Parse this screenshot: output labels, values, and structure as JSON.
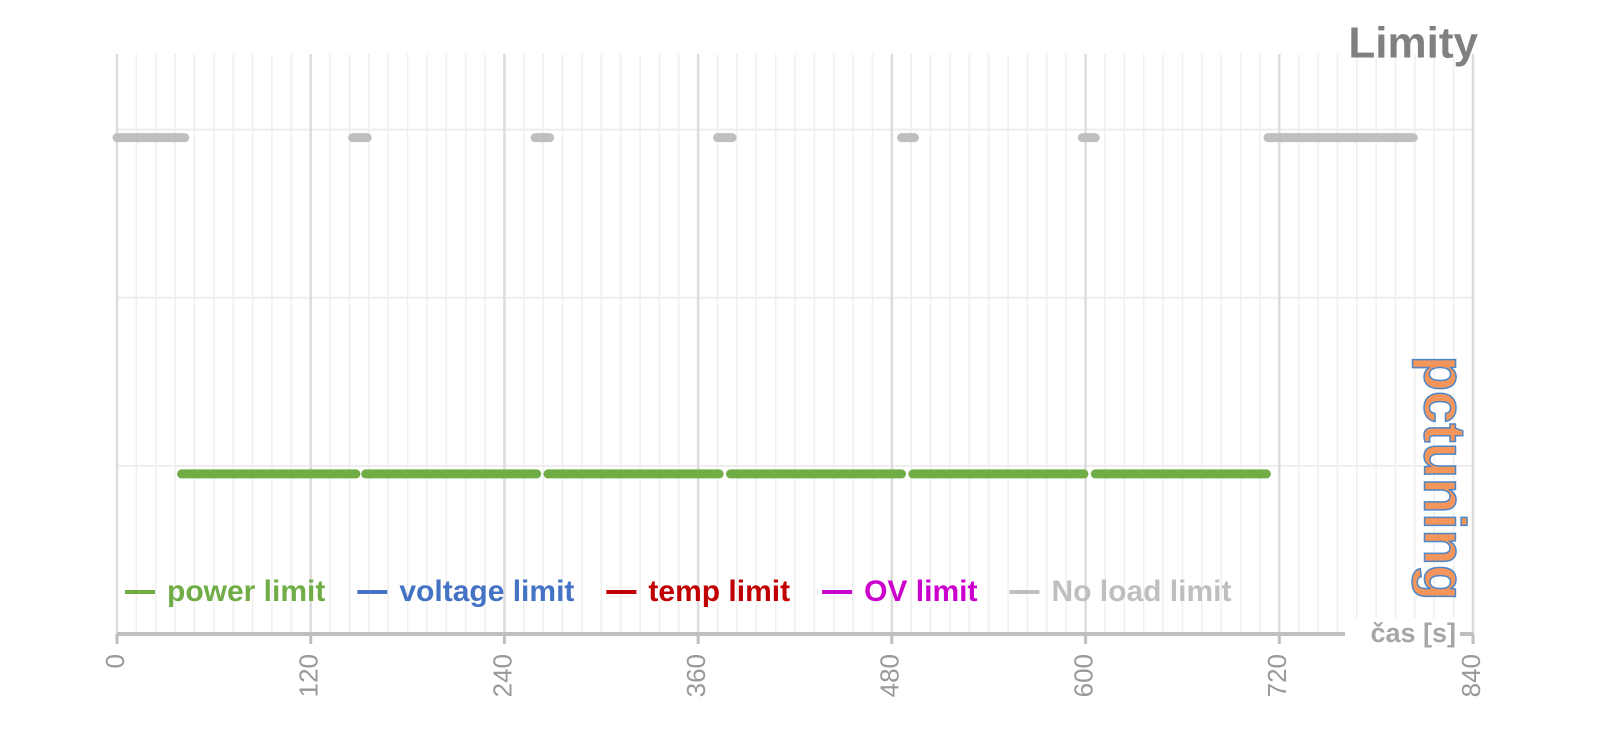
{
  "chart_data": {
    "type": "line",
    "title": "Limity",
    "xlabel": "čas [s]",
    "watermark": "pctuning",
    "xlim": [
      0,
      840
    ],
    "xticks": [
      0,
      120,
      240,
      360,
      480,
      600,
      720,
      840
    ],
    "xminorticks": [
      12,
      24,
      36,
      48,
      60,
      72,
      84,
      96,
      108,
      132,
      144,
      156,
      168,
      180,
      192,
      204,
      216,
      228,
      252,
      264,
      276,
      288,
      300,
      312,
      324,
      336,
      348,
      372,
      384,
      396,
      408,
      420,
      432,
      444,
      456,
      468,
      492,
      504,
      516,
      528,
      540,
      552,
      564,
      576,
      588,
      612,
      624,
      636,
      648,
      660,
      672,
      684,
      696,
      708,
      732,
      744,
      756,
      768,
      780,
      792,
      804,
      816,
      828
    ],
    "ylim": [
      0,
      3.45
    ],
    "yticks": [
      0,
      1,
      2,
      3
    ],
    "grid": true,
    "series": [
      {
        "name": "power limit",
        "color": "#70ad47",
        "x": [
          40,
          148,
          150,
          154,
          260,
          263,
          267,
          373,
          376,
          380,
          486,
          489,
          493,
          599,
          602,
          606,
          712
        ],
        "values": [
          1,
          1,
          null,
          1,
          1,
          null,
          1,
          1,
          null,
          1,
          1,
          null,
          1,
          1,
          null,
          1,
          1
        ]
      },
      {
        "name": "voltage limit",
        "color": "#4472c4",
        "x": [],
        "values": []
      },
      {
        "name": "temp limit",
        "color": "#c00000",
        "x": [],
        "values": []
      },
      {
        "name": "OV limit",
        "color": "#cc00cc",
        "x": [],
        "values": []
      },
      {
        "name": "No load limit",
        "color": "#bfbfbf",
        "x": [
          0,
          42,
          90,
          146,
          155,
          200,
          259,
          268,
          320,
          372,
          381,
          430,
          486,
          494,
          540,
          598,
          606,
          660,
          713,
          803
        ],
        "values": [
          3,
          3,
          null,
          3,
          3,
          null,
          3,
          3,
          null,
          3,
          3,
          null,
          3,
          3,
          null,
          3,
          3,
          null,
          3,
          3
        ]
      }
    ]
  }
}
